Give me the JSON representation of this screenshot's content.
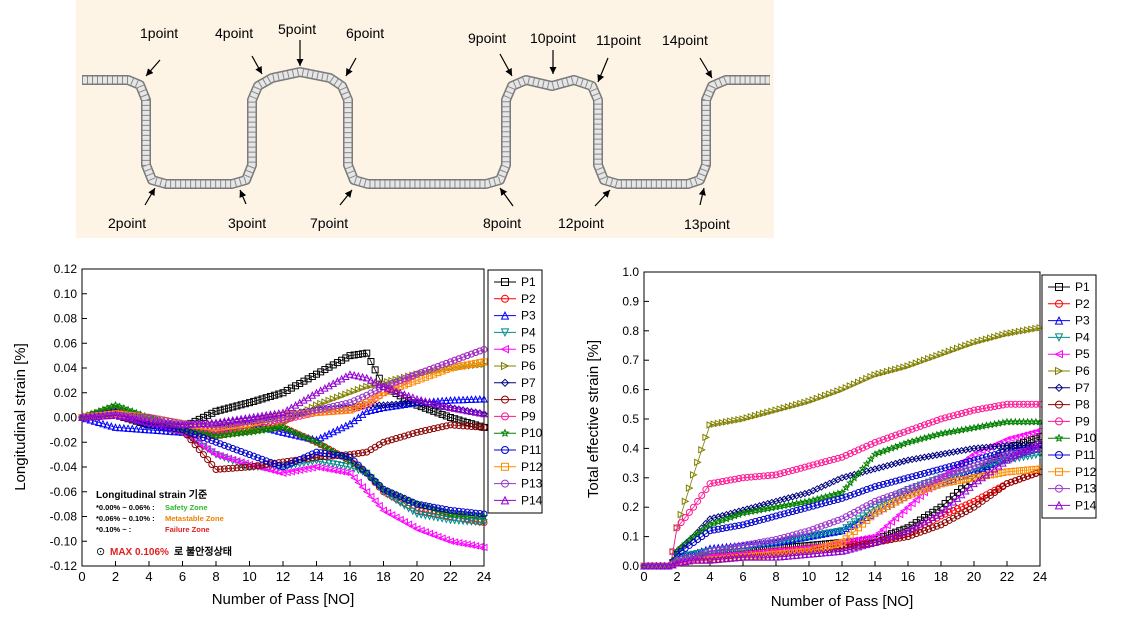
{
  "profile": {
    "labels": {
      "p1": "1point",
      "p2": "2point",
      "p3": "3point",
      "p4": "4point",
      "p5": "5point",
      "p6": "6point",
      "p7": "7point",
      "p8": "8point",
      "p9": "9point",
      "p10": "10point",
      "p11": "11point",
      "p12": "12point",
      "p13": "13point",
      "p14": "14point"
    }
  },
  "chart_data": [
    {
      "type": "line",
      "xlabel": "Number of Pass [NO]",
      "ylabel": "Longitudinal strain  [%]",
      "xlim": [
        0,
        24
      ],
      "ylim": [
        -0.12,
        0.12
      ],
      "xticks": [
        "0",
        "2",
        "4",
        "6",
        "8",
        "10",
        "12",
        "14",
        "16",
        "18",
        "20",
        "22",
        "24"
      ],
      "yticks": [
        "0.12",
        "0.10",
        "0.08",
        "0.06",
        "0.04",
        "0.02",
        "0.00",
        "-0.02",
        "-0.04",
        "-0.06",
        "-0.08",
        "-0.10",
        "-0.12"
      ],
      "grid": false,
      "legend_position": "right",
      "x": [
        0,
        2,
        4,
        6,
        8,
        10,
        12,
        14,
        16,
        17,
        18,
        20,
        22,
        24
      ],
      "series": [
        {
          "name": "P1",
          "color": "#000000",
          "marker": "square",
          "values": [
            0,
            0.002,
            -0.006,
            -0.008,
            0.005,
            0.012,
            0.02,
            0.035,
            0.05,
            0.052,
            0.025,
            0.01,
            0,
            -0.008
          ]
        },
        {
          "name": "P2",
          "color": "#ff0000",
          "marker": "circle",
          "values": [
            0,
            0.006,
            -0.005,
            -0.012,
            -0.015,
            -0.01,
            -0.008,
            -0.02,
            -0.035,
            -0.045,
            -0.06,
            -0.075,
            -0.08,
            -0.085
          ]
        },
        {
          "name": "P3",
          "color": "#0000ff",
          "marker": "triangle-up",
          "values": [
            0,
            -0.008,
            -0.01,
            -0.012,
            -0.01,
            -0.005,
            -0.012,
            -0.018,
            -0.005,
            0.005,
            0.008,
            0.012,
            0.014,
            0.015
          ]
        },
        {
          "name": "P4",
          "color": "#008b8b",
          "marker": "triangle-down",
          "values": [
            0,
            0.003,
            -0.005,
            -0.012,
            -0.03,
            -0.04,
            -0.04,
            -0.035,
            -0.04,
            -0.045,
            -0.06,
            -0.078,
            -0.083,
            -0.085
          ]
        },
        {
          "name": "P5",
          "color": "#ff00ff",
          "marker": "triangle-left",
          "values": [
            0,
            0.002,
            -0.005,
            -0.012,
            -0.03,
            -0.038,
            -0.045,
            -0.04,
            -0.045,
            -0.06,
            -0.075,
            -0.09,
            -0.1,
            -0.105
          ]
        },
        {
          "name": "P6",
          "color": "#808000",
          "marker": "triangle-right",
          "values": [
            0,
            0.008,
            0,
            -0.01,
            -0.012,
            -0.01,
            -0.005,
            0.01,
            0.02,
            0.025,
            0.028,
            0.035,
            0.04,
            0.043
          ]
        },
        {
          "name": "P7",
          "color": "#000080",
          "marker": "diamond",
          "values": [
            0,
            0.005,
            -0.003,
            -0.006,
            -0.005,
            -0.002,
            0.002,
            0.006,
            0.008,
            0.01,
            0.01,
            0.012,
            0.008,
            0.003
          ]
        },
        {
          "name": "P8",
          "color": "#8b0000",
          "marker": "circle",
          "values": [
            0,
            0.004,
            0,
            -0.01,
            -0.042,
            -0.04,
            -0.036,
            -0.032,
            -0.03,
            -0.028,
            -0.02,
            -0.012,
            -0.006,
            -0.008
          ]
        },
        {
          "name": "P9",
          "color": "#ff1493",
          "marker": "circle",
          "values": [
            0,
            0.004,
            0,
            -0.01,
            -0.012,
            -0.005,
            -0.002,
            0.004,
            0.006,
            0.01,
            0.02,
            0.035,
            0.045,
            0.055
          ]
        },
        {
          "name": "P10",
          "color": "#008000",
          "marker": "star",
          "values": [
            0,
            0.01,
            0,
            -0.01,
            -0.015,
            -0.012,
            -0.008,
            -0.02,
            -0.035,
            -0.045,
            -0.058,
            -0.07,
            -0.078,
            -0.08
          ]
        },
        {
          "name": "P11",
          "color": "#0000cd",
          "marker": "circle",
          "values": [
            0,
            0.004,
            -0.006,
            -0.01,
            -0.02,
            -0.03,
            -0.04,
            -0.028,
            -0.032,
            -0.045,
            -0.058,
            -0.07,
            -0.075,
            -0.078
          ]
        },
        {
          "name": "P12",
          "color": "#ff8c00",
          "marker": "square",
          "values": [
            0,
            0.003,
            0,
            -0.005,
            -0.008,
            -0.005,
            0.002,
            0.004,
            0.006,
            0.012,
            0.02,
            0.03,
            0.04,
            0.045
          ]
        },
        {
          "name": "P13",
          "color": "#9932cc",
          "marker": "circle",
          "values": [
            0,
            0.002,
            0,
            -0.005,
            -0.006,
            -0.003,
            0,
            0.006,
            0.012,
            0.018,
            0.025,
            0.035,
            0.045,
            0.055
          ]
        },
        {
          "name": "P14",
          "color": "#9400d3",
          "marker": "triangle-up",
          "values": [
            0,
            0.002,
            -0.004,
            -0.006,
            -0.004,
            0,
            0.004,
            0.02,
            0.035,
            0.032,
            0.025,
            0.015,
            0.008,
            0.003
          ]
        }
      ],
      "annotation": {
        "title": "Longitudinal strain 기준",
        "lines": [
          {
            "range": "*0.00% ~ 0.06% :",
            "zone": "Safety Zone",
            "color": "#2db82d"
          },
          {
            "range": "*0.06% ~ 0.10% :",
            "zone": "Metastable Zone",
            "color": "#f08000"
          },
          {
            "range": "*0.10% ~          :",
            "zone": "Failure Zone",
            "color": "#e02020"
          }
        ],
        "max_prefix": "⊙",
        "max_value": "MAX 0.106%",
        "max_suffix": "로 불안정상태"
      }
    },
    {
      "type": "line",
      "xlabel": "Number of Pass [NO]",
      "ylabel": "Total effective strain [%]",
      "xlim": [
        0,
        24
      ],
      "ylim": [
        0,
        1.0
      ],
      "xticks": [
        "0",
        "2",
        "4",
        "6",
        "8",
        "10",
        "12",
        "14",
        "16",
        "18",
        "20",
        "22",
        "24"
      ],
      "yticks": [
        "1.0",
        "0.9",
        "0.8",
        "0.7",
        "0.6",
        "0.5",
        "0.4",
        "0.3",
        "0.2",
        "0.1",
        "0.0"
      ],
      "grid": false,
      "legend_position": "right",
      "x": [
        0,
        1.6,
        2,
        3,
        4,
        6,
        8,
        10,
        12,
        14,
        16,
        18,
        20,
        22,
        24
      ],
      "series": [
        {
          "name": "P1",
          "color": "#000000",
          "marker": "square",
          "values": [
            0,
            0,
            0.02,
            0.03,
            0.04,
            0.05,
            0.06,
            0.07,
            0.08,
            0.09,
            0.13,
            0.2,
            0.3,
            0.4,
            0.44
          ]
        },
        {
          "name": "P2",
          "color": "#ff0000",
          "marker": "circle",
          "values": [
            0,
            0,
            0.02,
            0.03,
            0.03,
            0.04,
            0.05,
            0.06,
            0.07,
            0.08,
            0.11,
            0.17,
            0.22,
            0.28,
            0.32
          ]
        },
        {
          "name": "P3",
          "color": "#0000ff",
          "marker": "triangle-up",
          "values": [
            0,
            0,
            0.03,
            0.04,
            0.06,
            0.07,
            0.08,
            0.1,
            0.12,
            0.18,
            0.24,
            0.28,
            0.32,
            0.37,
            0.4
          ]
        },
        {
          "name": "P4",
          "color": "#008b8b",
          "marker": "triangle-down",
          "values": [
            0,
            0,
            0.03,
            0.04,
            0.05,
            0.06,
            0.08,
            0.1,
            0.12,
            0.2,
            0.26,
            0.3,
            0.33,
            0.36,
            0.38
          ]
        },
        {
          "name": "P5",
          "color": "#ff00ff",
          "marker": "triangle-left",
          "values": [
            0,
            0,
            0.01,
            0.02,
            0.03,
            0.04,
            0.05,
            0.06,
            0.08,
            0.1,
            0.2,
            0.3,
            0.38,
            0.43,
            0.46
          ]
        },
        {
          "name": "P6",
          "color": "#808000",
          "marker": "triangle-right",
          "values": [
            0,
            0,
            0.13,
            0.31,
            0.48,
            0.5,
            0.53,
            0.56,
            0.6,
            0.65,
            0.68,
            0.72,
            0.76,
            0.79,
            0.81
          ]
        },
        {
          "name": "P7",
          "color": "#000080",
          "marker": "diamond",
          "values": [
            0,
            0,
            0.05,
            0.1,
            0.16,
            0.19,
            0.22,
            0.25,
            0.3,
            0.33,
            0.36,
            0.38,
            0.4,
            0.41,
            0.41
          ]
        },
        {
          "name": "P8",
          "color": "#8b0000",
          "marker": "circle",
          "values": [
            0,
            0,
            0.01,
            0.02,
            0.02,
            0.03,
            0.04,
            0.05,
            0.06,
            0.08,
            0.1,
            0.14,
            0.2,
            0.28,
            0.32
          ]
        },
        {
          "name": "P9",
          "color": "#ff1493",
          "marker": "circle",
          "values": [
            0,
            0,
            0.13,
            0.2,
            0.28,
            0.3,
            0.31,
            0.34,
            0.37,
            0.42,
            0.46,
            0.5,
            0.53,
            0.55,
            0.55
          ]
        },
        {
          "name": "P10",
          "color": "#008000",
          "marker": "star",
          "values": [
            0,
            0,
            0.05,
            0.1,
            0.14,
            0.18,
            0.2,
            0.22,
            0.25,
            0.38,
            0.42,
            0.45,
            0.47,
            0.49,
            0.49
          ]
        },
        {
          "name": "P11",
          "color": "#0000cd",
          "marker": "circle",
          "values": [
            0,
            0,
            0.04,
            0.08,
            0.12,
            0.14,
            0.17,
            0.2,
            0.23,
            0.27,
            0.3,
            0.33,
            0.36,
            0.39,
            0.4
          ]
        },
        {
          "name": "P12",
          "color": "#ff8c00",
          "marker": "square",
          "values": [
            0,
            0,
            0.01,
            0.02,
            0.02,
            0.03,
            0.04,
            0.05,
            0.08,
            0.18,
            0.24,
            0.28,
            0.3,
            0.32,
            0.33
          ]
        },
        {
          "name": "P13",
          "color": "#9932cc",
          "marker": "circle",
          "values": [
            0,
            0,
            0.02,
            0.03,
            0.05,
            0.07,
            0.09,
            0.12,
            0.16,
            0.22,
            0.26,
            0.3,
            0.34,
            0.38,
            0.4
          ]
        },
        {
          "name": "P14",
          "color": "#9400d3",
          "marker": "triangle-up",
          "values": [
            0,
            0,
            0.01,
            0.02,
            0.02,
            0.03,
            0.03,
            0.04,
            0.05,
            0.08,
            0.12,
            0.18,
            0.28,
            0.36,
            0.42
          ]
        }
      ]
    }
  ]
}
